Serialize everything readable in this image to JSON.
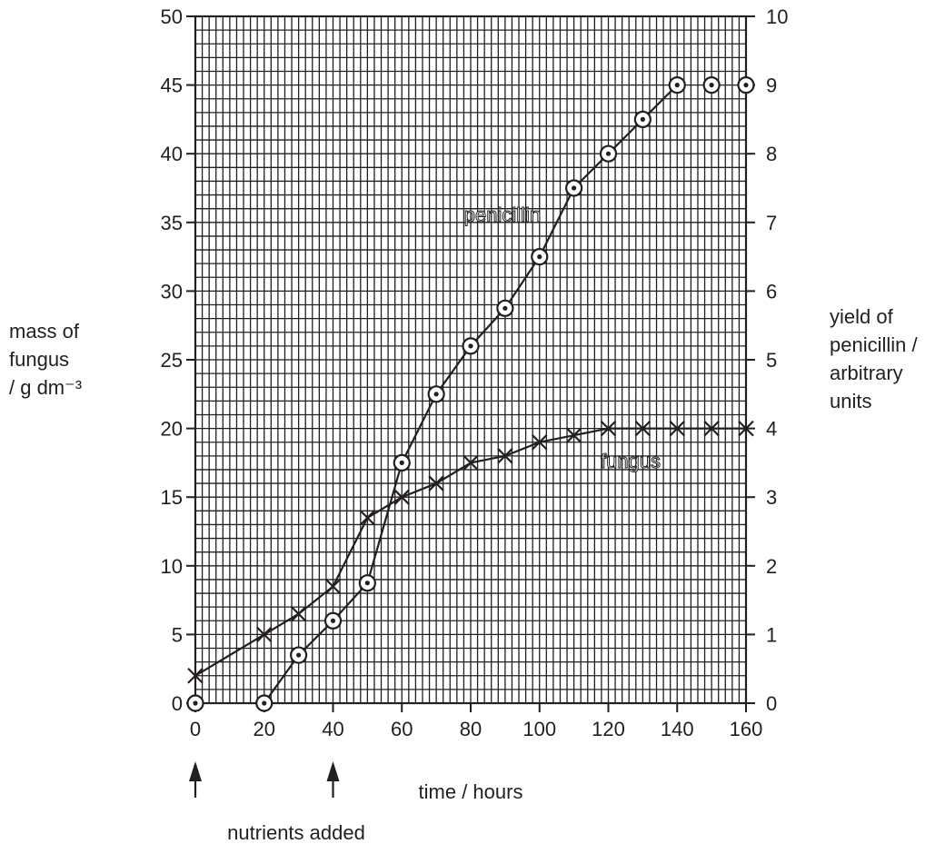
{
  "chart_data": {
    "type": "line",
    "x": [
      0,
      10,
      20,
      30,
      40,
      50,
      60,
      70,
      80,
      90,
      100,
      110,
      120,
      130,
      140,
      150,
      160
    ],
    "xlim": [
      0,
      160
    ],
    "x_ticks": [
      "0",
      "20",
      "40",
      "60",
      "80",
      "100",
      "120",
      "140",
      "160"
    ],
    "xlabel": "time / hours",
    "y_left": {
      "label": [
        "mass of",
        "fungus",
        "/ g dm⁻³"
      ],
      "lim": [
        0,
        50
      ],
      "ticks": [
        "0",
        "5",
        "10",
        "15",
        "20",
        "25",
        "30",
        "35",
        "40",
        "45",
        "50"
      ]
    },
    "y_right": {
      "label": [
        "yield of",
        "penicillin /",
        "arbitrary",
        "units"
      ],
      "lim": [
        0,
        10
      ],
      "ticks": [
        "0",
        "1",
        "2",
        "3",
        "4",
        "5",
        "6",
        "7",
        "8",
        "9",
        "10"
      ]
    },
    "grid": true,
    "series": [
      {
        "name": "fungus",
        "axis": "left",
        "marker": "cross",
        "x": [
          0,
          20,
          30,
          40,
          50,
          60,
          70,
          80,
          90,
          100,
          110,
          120,
          130,
          140,
          150,
          160
        ],
        "values": [
          2,
          5,
          6.5,
          8.5,
          13.5,
          15,
          16,
          17.5,
          18,
          19,
          19.5,
          20,
          20,
          20,
          20,
          20
        ]
      },
      {
        "name": "penicillin",
        "axis": "right",
        "marker": "circle-dot",
        "x": [
          0,
          20,
          30,
          40,
          50,
          60,
          70,
          80,
          90,
          100,
          110,
          120,
          130,
          140,
          150,
          160
        ],
        "values": [
          0,
          0,
          0.7,
          1.2,
          1.75,
          3.5,
          4.5,
          5.2,
          5.75,
          6.5,
          7.5,
          8,
          8.5,
          9,
          9,
          9
        ],
        "unconnected_x": [
          0,
          150,
          160
        ]
      }
    ],
    "annotations": {
      "arrows_at_x": [
        0,
        40
      ],
      "text": "nutrients added"
    }
  },
  "colors": {
    "ink": "#231f20",
    "background": "#ffffff"
  }
}
